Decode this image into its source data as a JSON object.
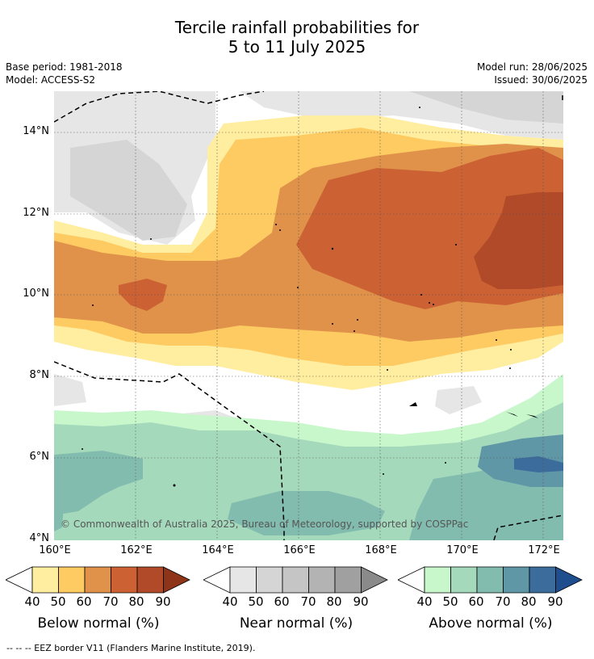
{
  "title_line1": "Tercile rainfall probabilities for",
  "title_line2": "5 to 11 July 2025",
  "base_period": "Base period: 1981-2018",
  "model": "Model: ACCESS-S2",
  "model_run": "Model run: 28/06/2025",
  "issued": "Issued: 30/06/2025",
  "copyright": "© Commonwealth of Australia 2025, Bureau of Meteorology, supported by COSPPac",
  "footnote": "--  --  -- EEZ border V11 (Flanders Marine Institute, 2019).",
  "lat_labels": [
    "14°N",
    "12°N",
    "10°N",
    "8°N",
    "6°N",
    "4°N"
  ],
  "lon_labels": [
    "160°E",
    "162°E",
    "164°E",
    "166°E",
    "168°E",
    "170°E",
    "172°E"
  ],
  "legends": [
    {
      "title": "Below normal (%)",
      "ticks": [
        "40",
        "50",
        "60",
        "70",
        "80",
        "90"
      ],
      "colors": [
        "#ffeda0",
        "#fecb62",
        "#e0924a",
        "#cc6233",
        "#b04a28",
        "#8e3418"
      ]
    },
    {
      "title": "Near normal (%)",
      "ticks": [
        "40",
        "50",
        "60",
        "70",
        "80",
        "90"
      ],
      "colors": [
        "#e6e6e6",
        "#d5d5d5",
        "#c5c5c5",
        "#b3b3b3",
        "#a0a0a0",
        "#8a8a8a"
      ]
    },
    {
      "title": "Above normal (%)",
      "ticks": [
        "40",
        "50",
        "60",
        "70",
        "80",
        "90"
      ],
      "colors": [
        "#c9f7cc",
        "#a5d9bc",
        "#82bcae",
        "#5f97a7",
        "#3b6c9c",
        "#1f4e8e"
      ]
    }
  ]
}
